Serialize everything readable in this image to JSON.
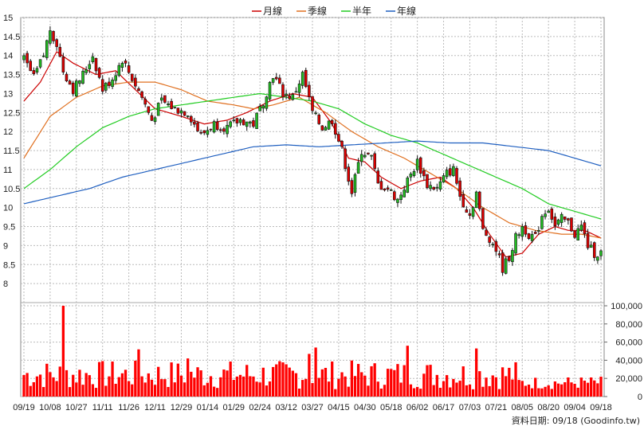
{
  "legend": [
    {
      "label": "月線",
      "color": "#cc0000"
    },
    {
      "label": "季線",
      "color": "#e07020"
    },
    {
      "label": "半年",
      "color": "#22cc22"
    },
    {
      "label": "年線",
      "color": "#1f5fc0"
    }
  ],
  "source_label": "資料日期: 09/18  (Goodinfo.tw)",
  "chart_data": {
    "type": "candlestick",
    "price_axis": {
      "min": 7.5,
      "max": 15,
      "ticks": [
        "15",
        "14.5",
        "14",
        "13.5",
        "13",
        "12.5",
        "12",
        "11.5",
        "11",
        "10.5",
        "10",
        "9.5",
        "9",
        "8.5",
        "8"
      ],
      "side": "left"
    },
    "volume_axis": {
      "min": 0,
      "max": 100000,
      "ticks": [
        "100,000",
        "80,000",
        "60,000",
        "40,000",
        "20,000",
        "0"
      ],
      "side": "right"
    },
    "x_tick_labels": [
      "09/19",
      "10/08",
      "10/27",
      "11/11",
      "11/26",
      "12/11",
      "12/29",
      "01/14",
      "01/29",
      "02/24",
      "03/12",
      "03/27",
      "04/15",
      "04/30",
      "05/18",
      "06/02",
      "06/17",
      "07/03",
      "07/21",
      "08/05",
      "08/20",
      "09/04",
      "09/18"
    ],
    "grid": true,
    "legend_position": "top-center",
    "candle_up_color": "#22bb22",
    "candle_down_color": "#dd0000",
    "volume_color": "#ff0000",
    "close_keypoints": [
      [
        0,
        13.9
      ],
      [
        3,
        13.4
      ],
      [
        6,
        14.0
      ],
      [
        8,
        14.7
      ],
      [
        10,
        14.3
      ],
      [
        12,
        13.6
      ],
      [
        15,
        13.1
      ],
      [
        18,
        13.5
      ],
      [
        21,
        14.0
      ],
      [
        24,
        13.1
      ],
      [
        27,
        13.4
      ],
      [
        30,
        13.9
      ],
      [
        33,
        13.4
      ],
      [
        36,
        12.9
      ],
      [
        39,
        12.3
      ],
      [
        42,
        12.8
      ],
      [
        46,
        12.6
      ],
      [
        50,
        12.5
      ],
      [
        54,
        11.9
      ],
      [
        58,
        12.2
      ],
      [
        62,
        12.1
      ],
      [
        66,
        12.3
      ],
      [
        70,
        12.2
      ],
      [
        73,
        12.8
      ],
      [
        76,
        13.5
      ],
      [
        79,
        13.0
      ],
      [
        82,
        12.9
      ],
      [
        85,
        13.5
      ],
      [
        88,
        12.5
      ],
      [
        91,
        12.1
      ],
      [
        94,
        12.3
      ],
      [
        97,
        11.5
      ],
      [
        100,
        10.4
      ],
      [
        103,
        11.5
      ],
      [
        106,
        11.3
      ],
      [
        108,
        10.6
      ],
      [
        111,
        10.5
      ],
      [
        114,
        10.2
      ],
      [
        117,
        10.7
      ],
      [
        120,
        11.2
      ],
      [
        123,
        10.6
      ],
      [
        126,
        10.5
      ],
      [
        129,
        10.9
      ],
      [
        131,
        11.0
      ],
      [
        133,
        10.3
      ],
      [
        136,
        9.8
      ],
      [
        138,
        10.4
      ],
      [
        140,
        9.4
      ],
      [
        142,
        9.2
      ],
      [
        144,
        8.9
      ],
      [
        146,
        8.4
      ],
      [
        148,
        8.7
      ],
      [
        150,
        9.2
      ],
      [
        152,
        9.5
      ],
      [
        154,
        9.3
      ],
      [
        156,
        9.2
      ],
      [
        158,
        9.8
      ],
      [
        160,
        10.0
      ],
      [
        162,
        9.5
      ],
      [
        164,
        9.7
      ],
      [
        166,
        9.6
      ],
      [
        168,
        9.3
      ],
      [
        170,
        9.5
      ],
      [
        172,
        9.0
      ],
      [
        174,
        8.8
      ],
      [
        176,
        8.8
      ]
    ],
    "volume_peak_points": [
      [
        12,
        100000
      ],
      [
        35,
        52000
      ],
      [
        50,
        42000
      ],
      [
        87,
        47000
      ],
      [
        89,
        54000
      ],
      [
        117,
        56000
      ],
      [
        138,
        53000
      ]
    ],
    "volume_typical_range": [
      8000,
      40000
    ],
    "moving_averages": {
      "月線": [
        [
          0,
          12.8
        ],
        [
          5,
          13.3
        ],
        [
          10,
          14.1
        ],
        [
          15,
          13.8
        ],
        [
          22,
          13.5
        ],
        [
          28,
          13.6
        ],
        [
          34,
          13.1
        ],
        [
          40,
          12.6
        ],
        [
          48,
          12.4
        ],
        [
          55,
          12.2
        ],
        [
          62,
          12.3
        ],
        [
          68,
          12.5
        ],
        [
          75,
          12.8
        ],
        [
          82,
          13.0
        ],
        [
          88,
          12.9
        ],
        [
          94,
          12.2
        ],
        [
          99,
          11.3
        ],
        [
          104,
          11.2
        ],
        [
          109,
          10.8
        ],
        [
          115,
          10.5
        ],
        [
          121,
          10.7
        ],
        [
          127,
          10.8
        ],
        [
          132,
          10.5
        ],
        [
          137,
          10.0
        ],
        [
          142,
          9.3
        ],
        [
          147,
          8.7
        ],
        [
          152,
          8.8
        ],
        [
          157,
          9.3
        ],
        [
          162,
          9.5
        ],
        [
          166,
          9.4
        ],
        [
          171,
          9.4
        ],
        [
          176,
          9.2
        ]
      ],
      "季線": [
        [
          0,
          11.3
        ],
        [
          8,
          12.4
        ],
        [
          16,
          12.9
        ],
        [
          24,
          13.2
        ],
        [
          32,
          13.3
        ],
        [
          40,
          13.3
        ],
        [
          48,
          13.1
        ],
        [
          56,
          12.8
        ],
        [
          64,
          12.7
        ],
        [
          70,
          12.6
        ],
        [
          76,
          12.7
        ],
        [
          84,
          12.9
        ],
        [
          92,
          12.5
        ],
        [
          100,
          12.0
        ],
        [
          108,
          11.6
        ],
        [
          116,
          11.3
        ],
        [
          124,
          10.9
        ],
        [
          132,
          10.5
        ],
        [
          140,
          10.0
        ],
        [
          148,
          9.6
        ],
        [
          156,
          9.4
        ],
        [
          164,
          9.3
        ],
        [
          170,
          9.3
        ],
        [
          176,
          9.2
        ]
      ],
      "半年": [
        [
          0,
          10.5
        ],
        [
          8,
          11.0
        ],
        [
          16,
          11.6
        ],
        [
          24,
          12.1
        ],
        [
          32,
          12.4
        ],
        [
          40,
          12.6
        ],
        [
          48,
          12.7
        ],
        [
          56,
          12.8
        ],
        [
          64,
          12.9
        ],
        [
          72,
          13.0
        ],
        [
          80,
          12.9
        ],
        [
          88,
          12.8
        ],
        [
          96,
          12.6
        ],
        [
          104,
          12.2
        ],
        [
          112,
          11.9
        ],
        [
          120,
          11.7
        ],
        [
          128,
          11.4
        ],
        [
          136,
          11.1
        ],
        [
          144,
          10.8
        ],
        [
          152,
          10.5
        ],
        [
          160,
          10.1
        ],
        [
          168,
          9.9
        ],
        [
          176,
          9.7
        ]
      ],
      "年線": [
        [
          0,
          10.1
        ],
        [
          10,
          10.3
        ],
        [
          20,
          10.5
        ],
        [
          30,
          10.8
        ],
        [
          40,
          11.0
        ],
        [
          50,
          11.2
        ],
        [
          60,
          11.4
        ],
        [
          70,
          11.6
        ],
        [
          80,
          11.65
        ],
        [
          90,
          11.6
        ],
        [
          100,
          11.65
        ],
        [
          110,
          11.7
        ],
        [
          120,
          11.75
        ],
        [
          130,
          11.7
        ],
        [
          140,
          11.7
        ],
        [
          150,
          11.6
        ],
        [
          160,
          11.5
        ],
        [
          168,
          11.3
        ],
        [
          176,
          11.1
        ]
      ]
    }
  }
}
